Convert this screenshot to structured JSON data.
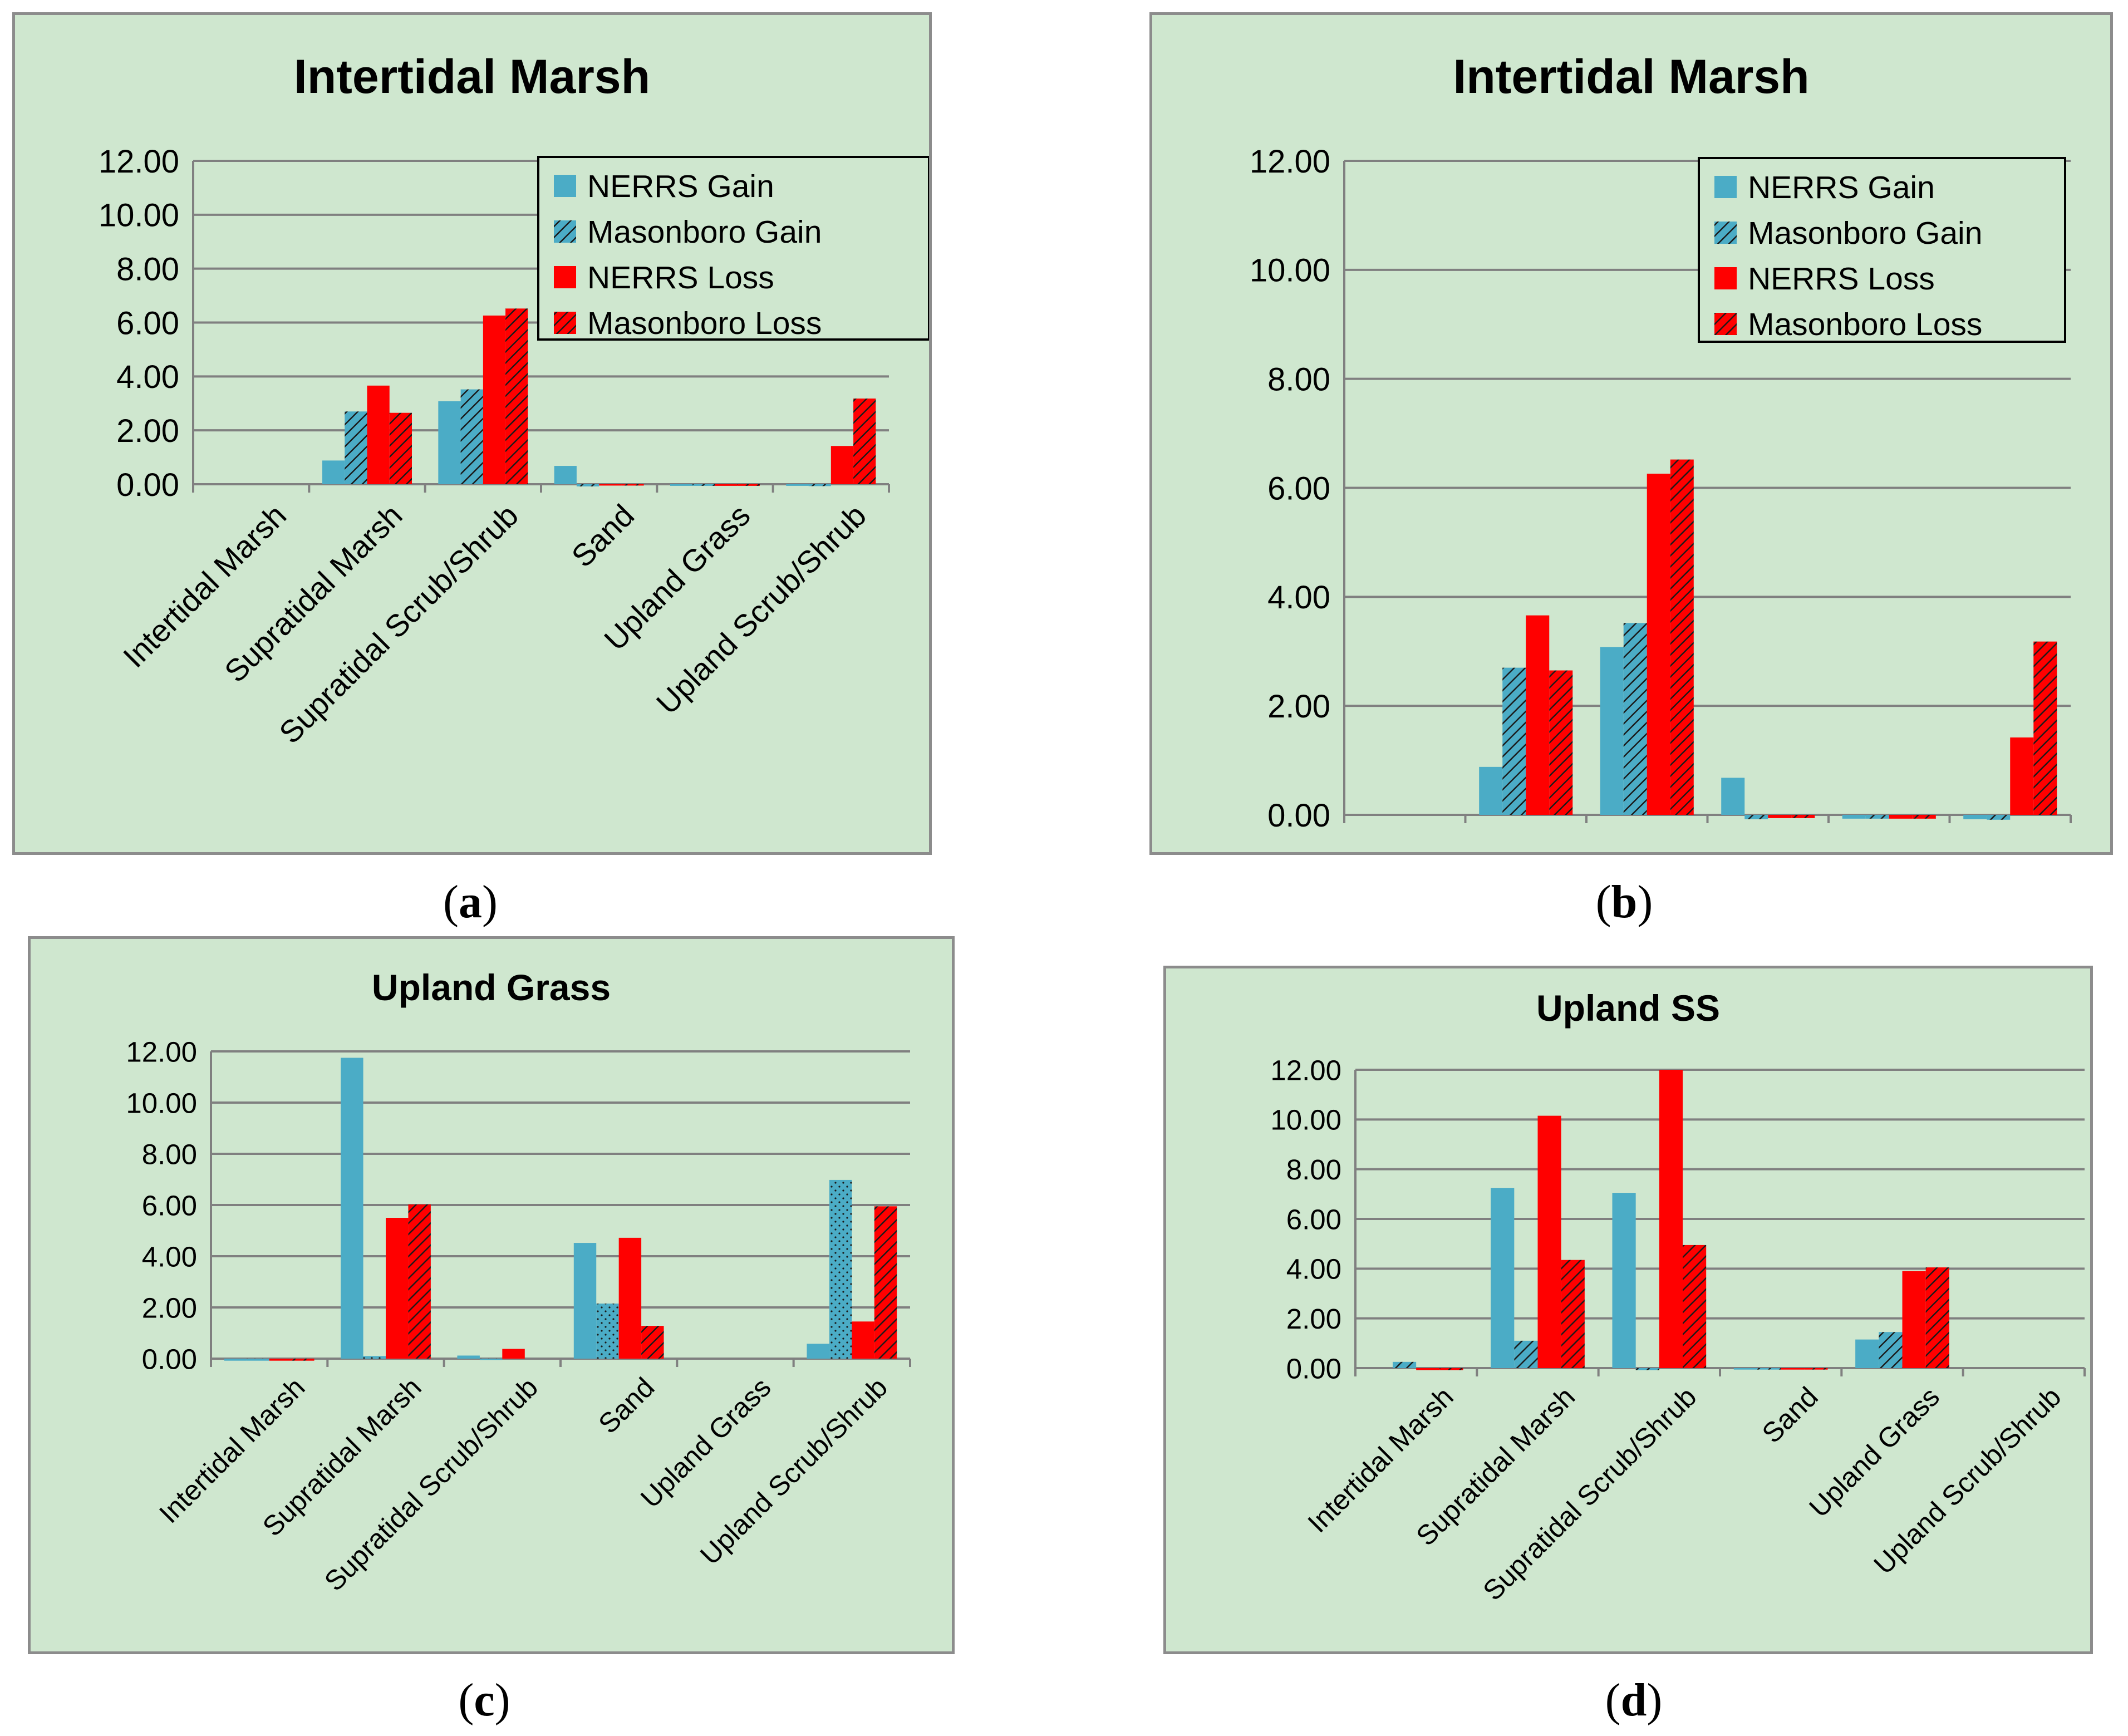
{
  "colors": {
    "nerrs_gain": "#4bacc6",
    "masonboro_gain": "#4bacc6",
    "nerrs_loss": "#ff0000",
    "masonboro_loss": "#ff0000",
    "hatch_stroke": "#1a1a1a",
    "background": "#cfe7cf",
    "grid": "#808080"
  },
  "captions": {
    "a": "a",
    "b": "b",
    "c": "c",
    "d": "d"
  },
  "chart_data": [
    {
      "id": "a",
      "type": "bar",
      "title": "Intertidal Marsh",
      "categories": [
        "Intertidal Marsh",
        "Supratidal Marsh",
        "Supratidal Scrub/Shrub",
        "Sand",
        "Upland Grass",
        "Upland Scrub/Shrub"
      ],
      "yticks": [
        "0.00",
        "2.00",
        "4.00",
        "6.00",
        "8.00",
        "10.00",
        "12.00"
      ],
      "ylim": [
        0,
        12
      ],
      "legend": true,
      "series": [
        {
          "name": "NERRS Gain",
          "values": [
            0,
            0.88,
            3.08,
            0.68,
            -0.06,
            -0.06
          ]
        },
        {
          "name": "Masonboro Gain",
          "values": [
            0,
            2.7,
            3.52,
            -0.08,
            -0.06,
            -0.07
          ]
        },
        {
          "name": "NERRS Loss",
          "values": [
            0,
            3.66,
            6.26,
            -0.05,
            -0.06,
            1.42
          ]
        },
        {
          "name": "Masonboro Loss",
          "values": [
            0,
            2.65,
            6.52,
            -0.05,
            -0.06,
            3.18
          ]
        }
      ]
    },
    {
      "id": "b",
      "type": "bar",
      "title": "Intertidal Marsh",
      "categories": [
        "Intertidal Marsh",
        "Supratidal Marsh",
        "Supratidal Scrub/Shrub",
        "Sand",
        "Upland Grass",
        "Upland Scrub/Shrub"
      ],
      "yticks": [
        "0.00",
        "2.00",
        "4.00",
        "6.00",
        "8.00",
        "10.00",
        "12.00"
      ],
      "ylim": [
        0,
        12
      ],
      "legend": true,
      "series": [
        {
          "name": "NERRS Gain",
          "values": [
            0,
            0.88,
            3.08,
            0.68,
            -0.07,
            -0.08
          ]
        },
        {
          "name": "Masonboro Gain",
          "values": [
            0,
            2.7,
            3.52,
            -0.08,
            -0.07,
            -0.09
          ]
        },
        {
          "name": "NERRS Loss",
          "values": [
            0,
            3.66,
            6.26,
            -0.06,
            -0.07,
            1.42
          ]
        },
        {
          "name": "Masonboro Loss",
          "values": [
            0,
            2.65,
            6.52,
            -0.06,
            -0.07,
            3.18
          ]
        }
      ]
    },
    {
      "id": "c",
      "type": "bar",
      "title": "Upland Grass",
      "categories": [
        "Intertidal Marsh",
        "Supratidal Marsh",
        "Supratidal Scrub/Shrub",
        "Sand",
        "Upland Grass",
        "Upland Scrub/Shrub"
      ],
      "yticks": [
        "0.00",
        "2.00",
        "4.00",
        "6.00",
        "8.00",
        "10.00",
        "12.00"
      ],
      "ylim": [
        0,
        12
      ],
      "legend": false,
      "series": [
        {
          "name": "NERRS Gain",
          "values": [
            -0.08,
            11.75,
            0.12,
            4.52,
            0,
            0.58
          ]
        },
        {
          "name": "Masonboro Gain",
          "values": [
            -0.08,
            0.1,
            -0.05,
            2.15,
            0,
            6.98
          ]
        },
        {
          "name": "NERRS Loss",
          "values": [
            -0.08,
            5.5,
            0.38,
            4.72,
            0,
            1.45
          ]
        },
        {
          "name": "Masonboro Loss",
          "values": [
            -0.08,
            6.02,
            0,
            1.28,
            0,
            5.95
          ]
        }
      ]
    },
    {
      "id": "d",
      "type": "bar",
      "title": "Upland SS",
      "categories": [
        "Intertidal Marsh",
        "Supratidal Marsh",
        "Supratidal Scrub/Shrub",
        "Sand",
        "Upland Grass",
        "Upland Scrub/Shrub"
      ],
      "yticks": [
        "0.00",
        "2.00",
        "4.00",
        "6.00",
        "8.00",
        "10.00",
        "12.00"
      ],
      "ylim": [
        0,
        12
      ],
      "legend": false,
      "series": [
        {
          "name": "NERRS Gain",
          "values": [
            0,
            7.25,
            7.05,
            -0.06,
            1.15,
            0
          ]
        },
        {
          "name": "Masonboro Gain",
          "values": [
            0.25,
            1.1,
            -0.08,
            -0.06,
            1.45,
            0
          ]
        },
        {
          "name": "NERRS Loss",
          "values": [
            -0.08,
            10.15,
            12.0,
            -0.06,
            3.9,
            0
          ]
        },
        {
          "name": "Masonboro Loss",
          "values": [
            -0.08,
            4.35,
            4.95,
            -0.06,
            4.05,
            0
          ]
        }
      ]
    }
  ]
}
